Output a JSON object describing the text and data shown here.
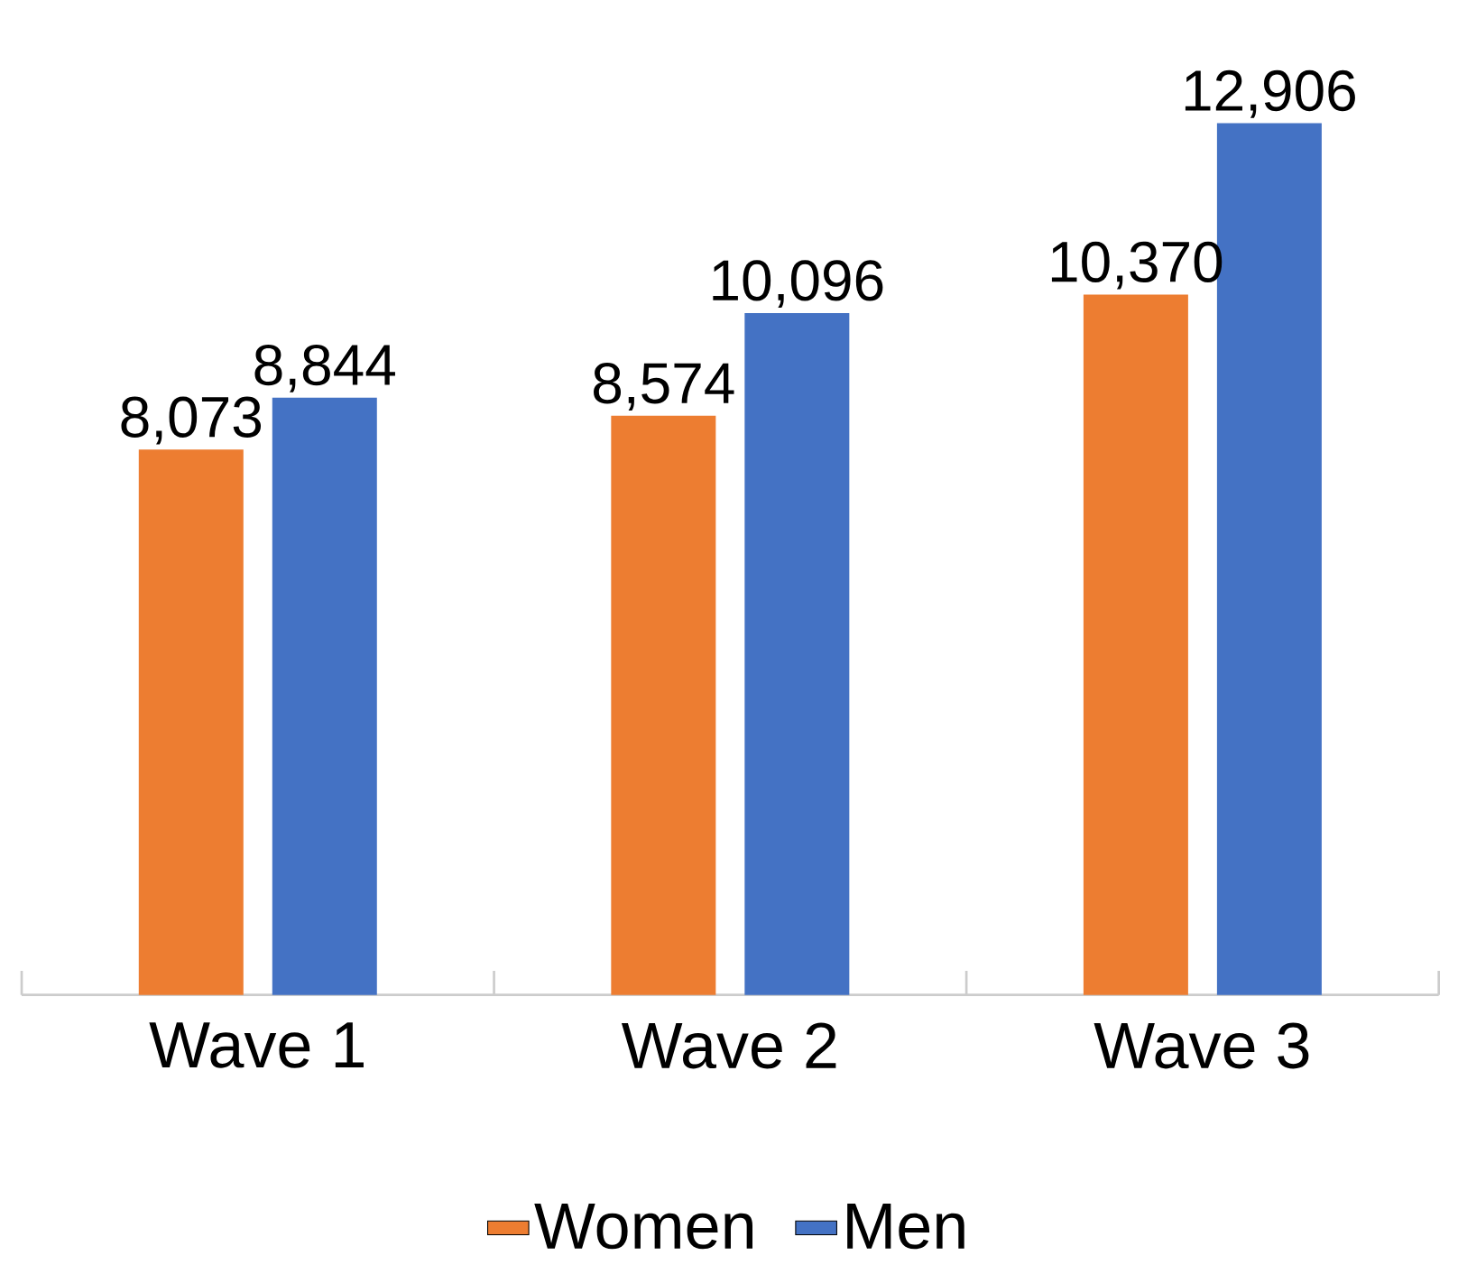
{
  "chart_data": {
    "type": "bar",
    "categories": [
      "Wave 1",
      "Wave 2",
      "Wave 3"
    ],
    "series": [
      {
        "name": "Women",
        "color": "#ed7d31",
        "values": [
          8073,
          8574,
          10370
        ],
        "value_labels": [
          "8,073",
          "8,574",
          "10,370"
        ]
      },
      {
        "name": "Men",
        "color": "#4472c4",
        "values": [
          8844,
          10096,
          12906
        ],
        "value_labels": [
          "8,844",
          "10,096",
          "12,906"
        ]
      }
    ],
    "legend": "bottom"
  }
}
